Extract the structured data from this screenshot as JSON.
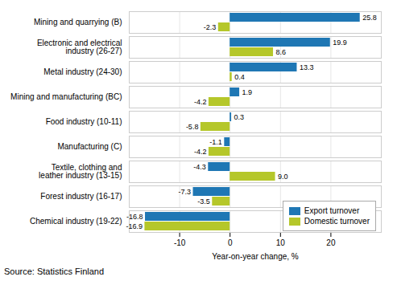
{
  "chart_data": {
    "type": "bar",
    "orientation": "horizontal",
    "categories": [
      "Chemical industry (19-22)",
      "Forest industry (16-17)",
      "Textile, clothing and\nleather industry (13-15)",
      "Manufacturing (C)",
      "Food industry (10-11)",
      "Mining and manufacturing (BC)",
      "Metal industry (24-30)",
      "Electronic and electrical\nindustry (26-27)",
      "Mining and quarrying (B)"
    ],
    "series": [
      {
        "name": "Export turnover",
        "color": "#1f77b4",
        "values": [
          -16.8,
          -7.3,
          -4.3,
          -1.1,
          0.3,
          1.9,
          13.3,
          19.9,
          25.8
        ],
        "value_labels": [
          "-16.8",
          "-7.3",
          "-4.3",
          "-1.1",
          "0.3",
          "1.9",
          "13.3",
          "19.9",
          "25.8"
        ]
      },
      {
        "name": "Domestic turnover",
        "color": "#b5c72a",
        "values": [
          -16.9,
          -3.5,
          9.0,
          -4.2,
          -5.8,
          -4.2,
          0.4,
          8.6,
          -2.3
        ],
        "value_labels": [
          "-16.9",
          "-3.5",
          "9.0",
          "-4.2",
          "-5.8",
          "-4.2",
          "0.4",
          "8.6",
          "-2.3"
        ]
      }
    ],
    "xlabel": "Year-on-year change, %",
    "source": "Source: Statistics Finland",
    "xlim": [
      -20,
      30
    ],
    "xticks": [
      -10,
      0,
      10,
      20
    ],
    "grid": true,
    "legend": "lower right",
    "data_labels": true
  }
}
